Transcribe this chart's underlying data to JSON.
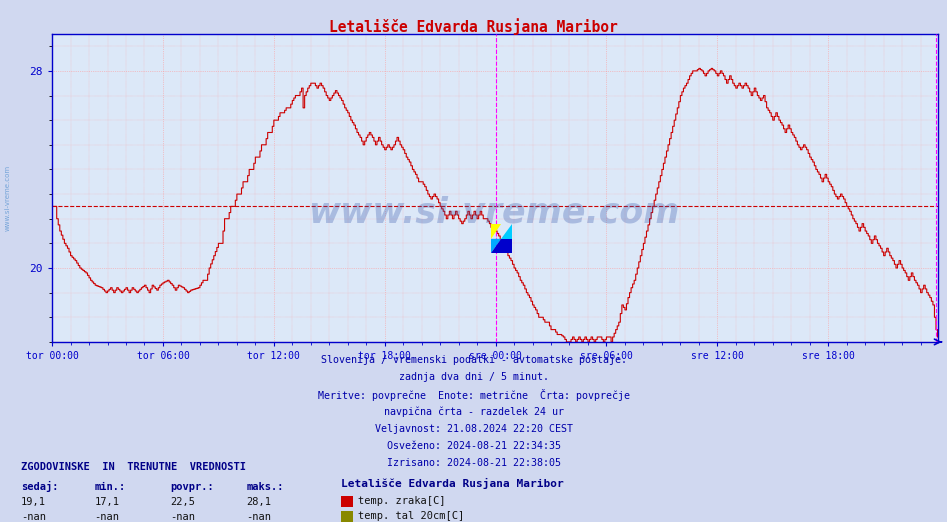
{
  "title": "Letališče Edvarda Rusjana Maribor",
  "bg_color": "#d0d8f0",
  "plot_bg_color": "#dce8f8",
  "line_color": "#cc0000",
  "avg_line_color": "#cc0000",
  "grid_color": "#ff9999",
  "vline_color": "#ff00ff",
  "axis_color": "#0000cc",
  "text_color": "#0000aa",
  "ylim": [
    17.0,
    29.5
  ],
  "n_points": 576,
  "avg_value": 22.5,
  "footer_lines": [
    "Slovenija / vremenski podatki - avtomatske postaje.",
    "zadnja dva dni / 5 minut.",
    "Meritve: povprečne  Enote: metrične  Črta: povprečje",
    "navpična črta - razdelek 24 ur",
    "Veljavnost: 21.08.2024 22:20 CEST",
    "Osveženo: 2024-08-21 22:34:35",
    "Izrisano: 2024-08-21 22:38:05"
  ],
  "xtick_positions": [
    0,
    72,
    144,
    216,
    288,
    360,
    432,
    504
  ],
  "xtick_labels": [
    "tor 00:00",
    "tor 06:00",
    "tor 12:00",
    "tor 18:00",
    "sre 00:00",
    "sre 06:00",
    "sre 12:00",
    "sre 18:00"
  ],
  "vline_positions": [
    288,
    574
  ],
  "legend_title": "Letališče Edvarda Rusjana Maribor",
  "legend_entry1": "temp. zraka[C]",
  "legend_entry2": "temp. tal 20cm[C]",
  "legend_color1": "#cc0000",
  "legend_color2": "#888800",
  "stats_headers": [
    "sedaj:",
    "min.:",
    "povpr.:",
    "maks.:"
  ],
  "stats_values": [
    "19,1",
    "17,1",
    "22,5",
    "28,1"
  ],
  "stats_values2": [
    "-nan",
    "-nan",
    "-nan",
    "-nan"
  ]
}
